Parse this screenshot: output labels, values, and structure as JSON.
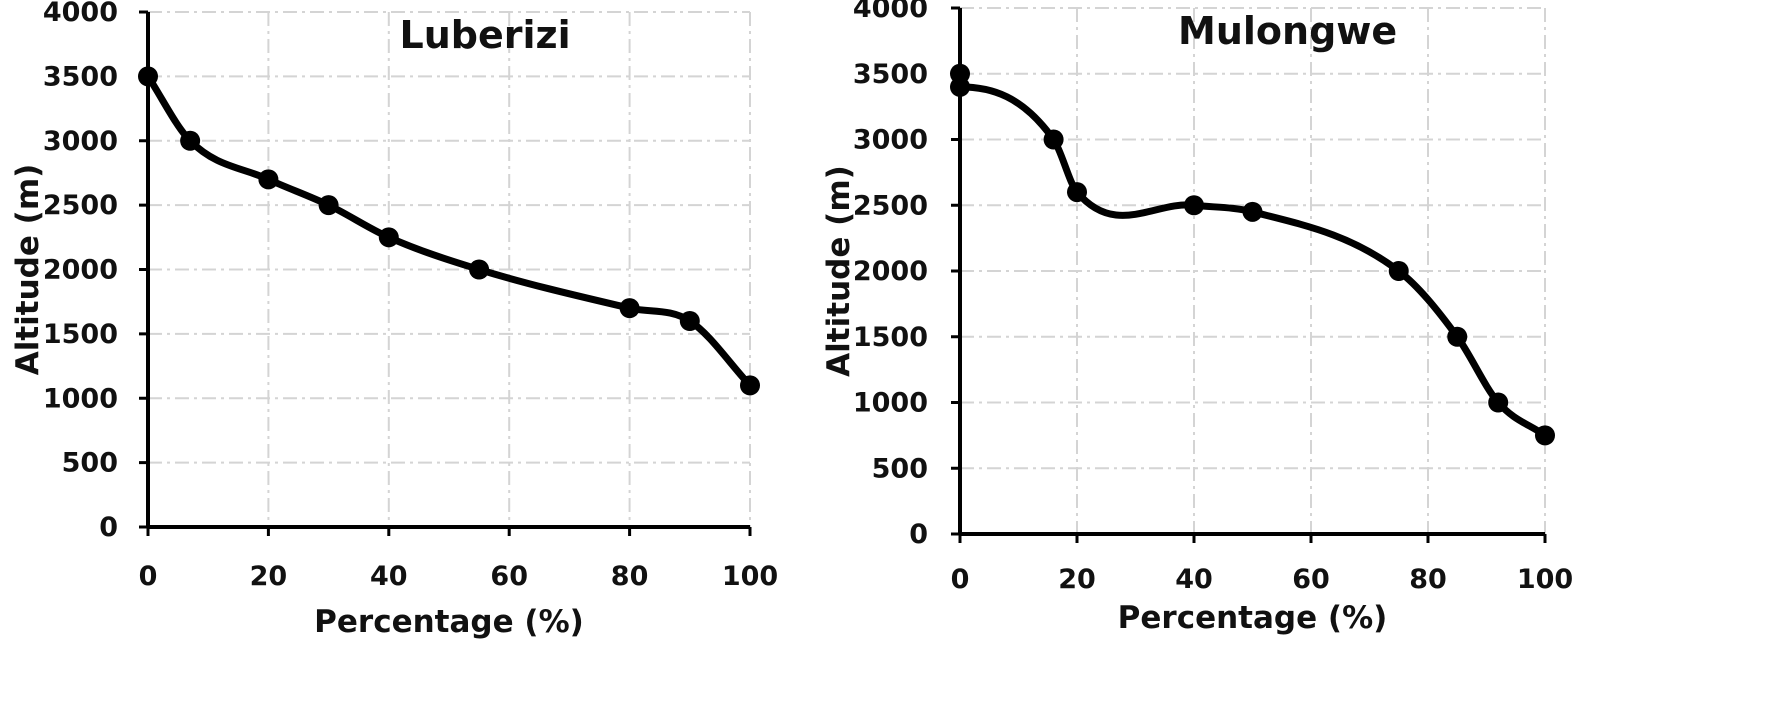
{
  "chart_data": [
    {
      "type": "line",
      "title": "Luberizi",
      "xlabel": "Percentage (%)",
      "ylabel": "Altitude (m)",
      "xlim": [
        0,
        100
      ],
      "ylim": [
        0,
        4000
      ],
      "xticks": [
        0,
        20,
        40,
        60,
        80,
        100
      ],
      "yticks": [
        0,
        500,
        1000,
        1500,
        2000,
        2500,
        3000,
        3500,
        4000
      ],
      "grid": true,
      "series": [
        {
          "x": [
            0,
            7,
            20,
            30,
            40,
            55,
            80,
            90,
            100
          ],
          "y": [
            3500,
            3000,
            2700,
            2500,
            2250,
            2000,
            1700,
            1600,
            1100
          ]
        }
      ]
    },
    {
      "type": "line",
      "title": "Mulongwe",
      "xlabel": "Percentage (%)",
      "ylabel": "Altitude (m)",
      "xlim": [
        0,
        100
      ],
      "ylim": [
        0,
        4000
      ],
      "xticks": [
        0,
        20,
        40,
        60,
        80,
        100
      ],
      "yticks": [
        0,
        500,
        1000,
        1500,
        2000,
        2500,
        3000,
        3500,
        4000
      ],
      "grid": true,
      "series": [
        {
          "x": [
            0,
            0,
            16,
            20,
            40,
            50,
            75,
            85,
            92,
            100
          ],
          "y": [
            3500,
            3400,
            3000,
            2600,
            2500,
            2450,
            2000,
            1500,
            1000,
            750
          ]
        }
      ]
    }
  ]
}
